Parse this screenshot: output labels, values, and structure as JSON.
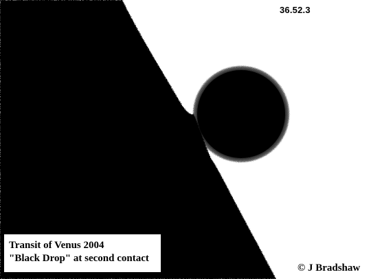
{
  "image": {
    "timestamp": "36.52.3",
    "caption": {
      "line1": "Transit of Venus 2004",
      "line2": "\"Black Drop\" at second contact"
    },
    "credit": "© J Bradshaw"
  },
  "colors": {
    "sky": "#ffffff",
    "silhouette": "#000000"
  }
}
